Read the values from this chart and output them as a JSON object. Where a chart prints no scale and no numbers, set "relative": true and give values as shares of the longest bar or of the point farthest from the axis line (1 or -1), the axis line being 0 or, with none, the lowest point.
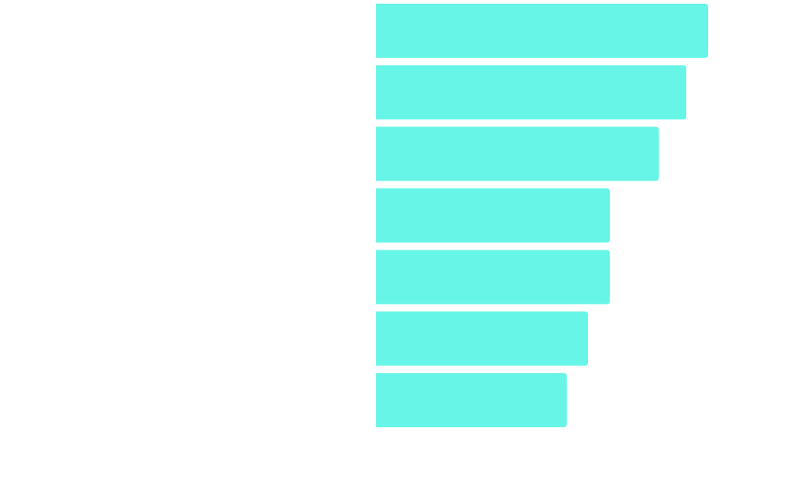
{
  "chart_data": {
    "type": "bar",
    "orientation": "horizontal",
    "relative": true,
    "categories": [
      null,
      null,
      null,
      null,
      null,
      null,
      null
    ],
    "values": [
      1,
      0.934,
      0.851,
      0.704,
      0.704,
      0.638,
      0.574
    ],
    "color": "#66f5e6",
    "legend": false
  }
}
